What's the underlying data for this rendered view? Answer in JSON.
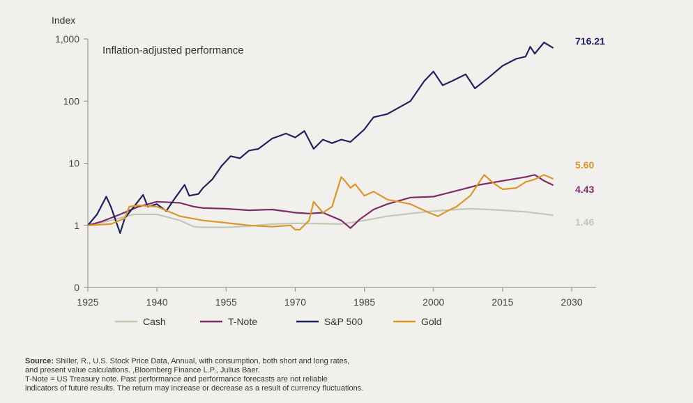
{
  "chart_data": {
    "type": "line",
    "title": "Inflation-adjusted performance",
    "ylabel": "Index",
    "xlabel": "",
    "y_scale": "log",
    "xlim": [
      1925,
      2030
    ],
    "y_ticks": [
      {
        "value": 1000,
        "label": "1,000"
      },
      {
        "value": 100,
        "label": "100"
      },
      {
        "value": 10,
        "label": "10"
      },
      {
        "value": 1,
        "label": "1"
      },
      {
        "value": 0.1,
        "label": "0"
      }
    ],
    "x_ticks": [
      1925,
      1940,
      1955,
      1970,
      1985,
      2000,
      2015,
      2030
    ],
    "series": [
      {
        "name": "Cash",
        "color": "#c2c8b3",
        "end_label": "1.46",
        "points": [
          [
            1925,
            1.0
          ],
          [
            1930,
            1.2
          ],
          [
            1935,
            1.5
          ],
          [
            1940,
            1.5
          ],
          [
            1945,
            1.2
          ],
          [
            1948,
            0.95
          ],
          [
            1950,
            0.93
          ],
          [
            1955,
            0.93
          ],
          [
            1960,
            0.97
          ],
          [
            1965,
            1.05
          ],
          [
            1970,
            1.08
          ],
          [
            1975,
            1.07
          ],
          [
            1980,
            1.05
          ],
          [
            1985,
            1.2
          ],
          [
            1990,
            1.4
          ],
          [
            1995,
            1.55
          ],
          [
            2000,
            1.7
          ],
          [
            2005,
            1.8
          ],
          [
            2008,
            1.85
          ],
          [
            2012,
            1.8
          ],
          [
            2015,
            1.75
          ],
          [
            2020,
            1.65
          ],
          [
            2023,
            1.55
          ],
          [
            2026,
            1.46
          ]
        ]
      },
      {
        "name": "T-Note",
        "color": "#7d2b6a",
        "end_label": "4.43",
        "points": [
          [
            1925,
            1.0
          ],
          [
            1928,
            1.15
          ],
          [
            1932,
            1.5
          ],
          [
            1936,
            2.0
          ],
          [
            1940,
            2.4
          ],
          [
            1945,
            2.3
          ],
          [
            1948,
            2.0
          ],
          [
            1950,
            1.9
          ],
          [
            1955,
            1.85
          ],
          [
            1960,
            1.75
          ],
          [
            1965,
            1.8
          ],
          [
            1970,
            1.6
          ],
          [
            1973,
            1.55
          ],
          [
            1976,
            1.6
          ],
          [
            1980,
            1.2
          ],
          [
            1982,
            0.9
          ],
          [
            1984,
            1.25
          ],
          [
            1987,
            1.8
          ],
          [
            1990,
            2.2
          ],
          [
            1995,
            2.8
          ],
          [
            2000,
            2.9
          ],
          [
            2005,
            3.6
          ],
          [
            2010,
            4.5
          ],
          [
            2015,
            5.2
          ],
          [
            2020,
            6.0
          ],
          [
            2022,
            6.5
          ],
          [
            2024,
            5.2
          ],
          [
            2026,
            4.43
          ]
        ]
      },
      {
        "name": "S&P 500",
        "color": "#1f2260",
        "end_label": "716.21",
        "points": [
          [
            1925,
            1.0
          ],
          [
            1927,
            1.5
          ],
          [
            1929,
            2.9
          ],
          [
            1930,
            2.0
          ],
          [
            1932,
            0.75
          ],
          [
            1933,
            1.3
          ],
          [
            1935,
            2.0
          ],
          [
            1937,
            3.1
          ],
          [
            1938,
            2.0
          ],
          [
            1940,
            2.2
          ],
          [
            1942,
            1.7
          ],
          [
            1944,
            2.8
          ],
          [
            1946,
            4.5
          ],
          [
            1947,
            3.0
          ],
          [
            1949,
            3.2
          ],
          [
            1950,
            4.0
          ],
          [
            1952,
            5.5
          ],
          [
            1954,
            9
          ],
          [
            1956,
            13
          ],
          [
            1958,
            12
          ],
          [
            1960,
            16
          ],
          [
            1962,
            17
          ],
          [
            1965,
            25
          ],
          [
            1968,
            30
          ],
          [
            1970,
            26
          ],
          [
            1972,
            33
          ],
          [
            1974,
            17
          ],
          [
            1976,
            24
          ],
          [
            1978,
            21
          ],
          [
            1980,
            24
          ],
          [
            1982,
            22
          ],
          [
            1985,
            35
          ],
          [
            1987,
            55
          ],
          [
            1990,
            62
          ],
          [
            1995,
            100
          ],
          [
            1998,
            210
          ],
          [
            2000,
            300
          ],
          [
            2002,
            180
          ],
          [
            2004,
            210
          ],
          [
            2007,
            270
          ],
          [
            2009,
            160
          ],
          [
            2012,
            240
          ],
          [
            2015,
            370
          ],
          [
            2018,
            480
          ],
          [
            2020,
            520
          ],
          [
            2021,
            750
          ],
          [
            2022,
            580
          ],
          [
            2024,
            880
          ],
          [
            2026,
            716.21
          ]
        ]
      },
      {
        "name": "Gold",
        "color": "#d9962a",
        "end_label": "5.60",
        "points": [
          [
            1925,
            1.0
          ],
          [
            1930,
            1.05
          ],
          [
            1933,
            1.3
          ],
          [
            1934,
            2.0
          ],
          [
            1936,
            2.1
          ],
          [
            1940,
            2.0
          ],
          [
            1945,
            1.4
          ],
          [
            1950,
            1.2
          ],
          [
            1955,
            1.1
          ],
          [
            1960,
            1.0
          ],
          [
            1965,
            0.95
          ],
          [
            1969,
            1.0
          ],
          [
            1970,
            0.85
          ],
          [
            1971,
            0.85
          ],
          [
            1973,
            1.2
          ],
          [
            1974,
            2.4
          ],
          [
            1976,
            1.6
          ],
          [
            1978,
            2.0
          ],
          [
            1980,
            6.0
          ],
          [
            1981,
            5.0
          ],
          [
            1982,
            4.0
          ],
          [
            1983,
            4.6
          ],
          [
            1985,
            3.0
          ],
          [
            1987,
            3.5
          ],
          [
            1990,
            2.6
          ],
          [
            1995,
            2.2
          ],
          [
            1999,
            1.6
          ],
          [
            2001,
            1.4
          ],
          [
            2003,
            1.7
          ],
          [
            2005,
            2.0
          ],
          [
            2008,
            3.0
          ],
          [
            2011,
            6.5
          ],
          [
            2013,
            4.8
          ],
          [
            2015,
            3.8
          ],
          [
            2018,
            4.0
          ],
          [
            2020,
            5.0
          ],
          [
            2022,
            5.5
          ],
          [
            2024,
            6.5
          ],
          [
            2026,
            5.6
          ]
        ]
      }
    ],
    "legend": [
      "Cash",
      "T-Note",
      "S&P 500",
      "Gold"
    ]
  },
  "footnote": {
    "source_label": "Source:",
    "line1": " Shiller, R., U.S. Stock Price Data, Annual, with consumption, both short and long rates,",
    "line2": "and present value calculations. ,Bloomberg Finance L.P., Julius Baer.",
    "line3": "T-Note = US Treasury note. Past performance and performance forecasts are not reliable",
    "line4": "indicators of future results. The return may increase or decrease as a result of currency fluctuations."
  }
}
